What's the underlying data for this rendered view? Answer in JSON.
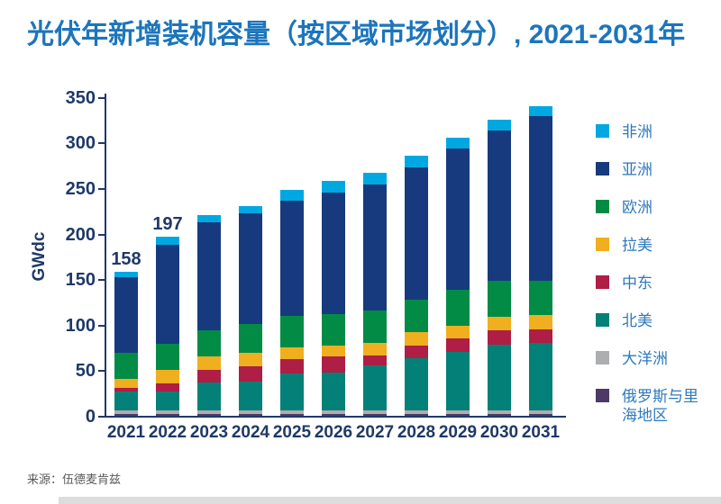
{
  "title": "光伏年新增装机容量（按区域市场划分）, 2021-2031年",
  "source_note": "来源：伍德麦肯兹",
  "colors": {
    "title_text": "#1C75BC",
    "axis_text": "#1F3968",
    "axis_line": "#1F3968",
    "legend_text": "#2E79BC",
    "source_text": "#595959",
    "footer_bar": "#DCDCDC",
    "background": "#FFFFFF"
  },
  "chart_data": {
    "type": "bar",
    "subtype": "stacked-vertical",
    "title": "光伏年新增装机容量（按区域市场划分）, 2021-2031年",
    "xlabel": "",
    "ylabel": "GWdc",
    "ylim": [
      0,
      350
    ],
    "ytick_step": 50,
    "grid": false,
    "legend_position": "right",
    "categories": [
      "2021",
      "2022",
      "2023",
      "2024",
      "2025",
      "2026",
      "2027",
      "2028",
      "2029",
      "2030",
      "2031"
    ],
    "series": [
      {
        "name": "非洲",
        "color": "#00A8E1",
        "values": [
          6,
          9,
          8,
          8,
          12,
          13,
          13,
          13,
          12,
          12,
          11
        ]
      },
      {
        "name": "亚洲",
        "color": "#163A7D",
        "values": [
          83,
          109,
          118,
          121,
          126,
          133,
          138,
          146,
          155,
          165,
          181
        ]
      },
      {
        "name": "欧洲",
        "color": "#028B45",
        "values": [
          28,
          29,
          29,
          32,
          35,
          35,
          36,
          35,
          39,
          39,
          37
        ]
      },
      {
        "name": "拉美",
        "color": "#EFAF1E",
        "values": [
          10,
          14,
          15,
          15,
          13,
          12,
          14,
          15,
          14,
          15,
          16
        ]
      },
      {
        "name": "中东",
        "color": "#AE1E45",
        "values": [
          4,
          9,
          13,
          16,
          16,
          18,
          11,
          14,
          15,
          16,
          15
        ]
      },
      {
        "name": "北美",
        "color": "#038078",
        "values": [
          21,
          21,
          31,
          32,
          40,
          41,
          49,
          57,
          64,
          72,
          74
        ]
      },
      {
        "name": "大洋洲",
        "color": "#ACAEB0",
        "values": [
          4,
          4,
          4,
          4,
          4,
          4,
          4,
          4,
          4,
          4,
          4
        ]
      },
      {
        "name": "俄罗斯与里海地区",
        "color": "#4D3A66",
        "values": [
          2,
          2,
          2,
          2,
          2,
          2,
          2,
          2,
          2,
          2,
          2
        ]
      }
    ],
    "totals": [
      158,
      197,
      220,
      230,
      248,
      258,
      267,
      286,
      305,
      325,
      340
    ],
    "annotations": [
      {
        "category": "2021",
        "text": "158"
      },
      {
        "category": "2022",
        "text": "197"
      }
    ],
    "ytick_labels": [
      "0",
      "50",
      "100",
      "150",
      "200",
      "250",
      "300",
      "350"
    ]
  }
}
